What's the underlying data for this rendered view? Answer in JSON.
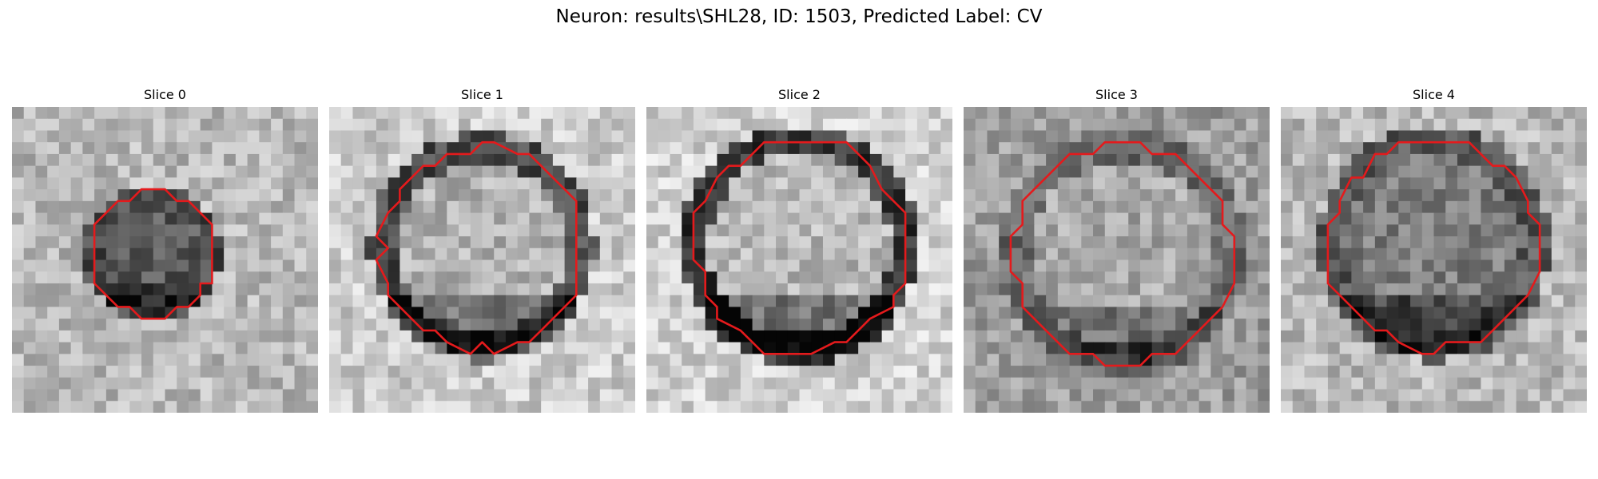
{
  "figure": {
    "title": "Neuron: results\\SHL28, ID: 1503, Predicted Label: CV",
    "contour_color": "#e41a1c",
    "colormap": "grayscale",
    "panels": [
      {
        "label": "Slice 0"
      },
      {
        "label": "Slice 1"
      },
      {
        "label": "Slice 2"
      },
      {
        "label": "Slice 3"
      },
      {
        "label": "Slice 4"
      }
    ]
  }
}
